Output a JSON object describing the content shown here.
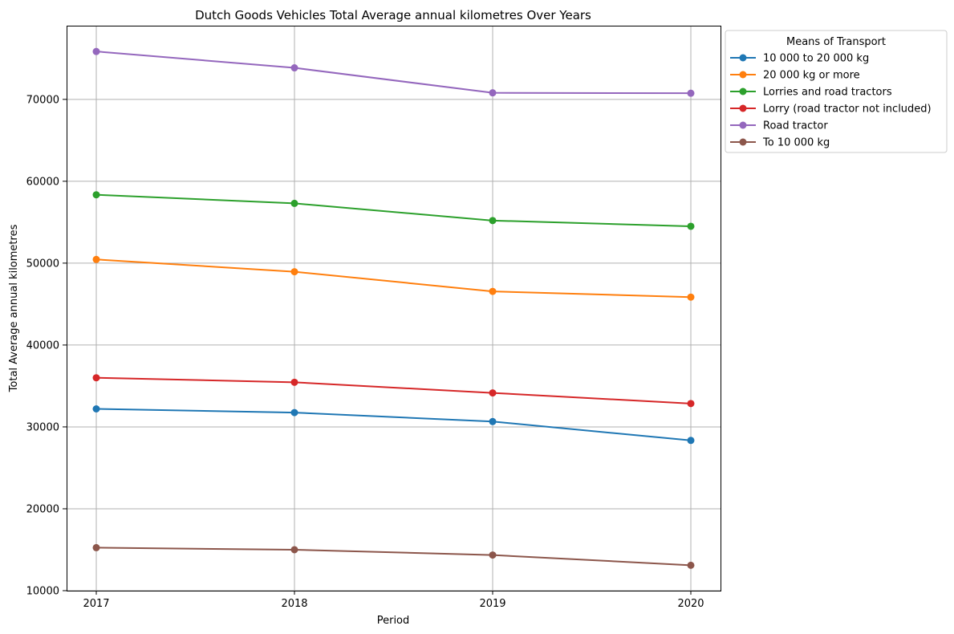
{
  "chart_data": {
    "type": "line",
    "title": "Dutch Goods Vehicles Total Average annual kilometres Over Years",
    "xlabel": "Period",
    "ylabel": "Total Average annual kilometres",
    "x": [
      2017,
      2018,
      2019,
      2020
    ],
    "x_tick_labels": [
      "2017",
      "2018",
      "2019",
      "2020"
    ],
    "ylim": [
      10000,
      79000
    ],
    "y_ticks": [
      10000,
      20000,
      30000,
      40000,
      50000,
      60000,
      70000
    ],
    "y_tick_labels": [
      "10000",
      "20000",
      "30000",
      "40000",
      "50000",
      "60000",
      "70000"
    ],
    "grid": true,
    "legend": {
      "title": "Means of Transport",
      "placement": "outside-right-top"
    },
    "series": [
      {
        "name": "10 000 to 20 000 kg",
        "color": "#1f77b4",
        "values": [
          32200,
          31750,
          30650,
          28350
        ]
      },
      {
        "name": "20 000 kg or more",
        "color": "#ff7f0e",
        "values": [
          50450,
          48950,
          46550,
          45850
        ]
      },
      {
        "name": "Lorries and road tractors",
        "color": "#2ca02c",
        "values": [
          58350,
          57300,
          55200,
          54500
        ]
      },
      {
        "name": "Lorry (road tractor not included)",
        "color": "#d62728",
        "values": [
          36000,
          35450,
          34150,
          32850
        ]
      },
      {
        "name": "Road tractor",
        "color": "#9467bd",
        "values": [
          75850,
          73850,
          70800,
          70750
        ]
      },
      {
        "name": "To 10 000 kg",
        "color": "#8c564b",
        "values": [
          15250,
          15000,
          14350,
          13100
        ]
      }
    ]
  }
}
